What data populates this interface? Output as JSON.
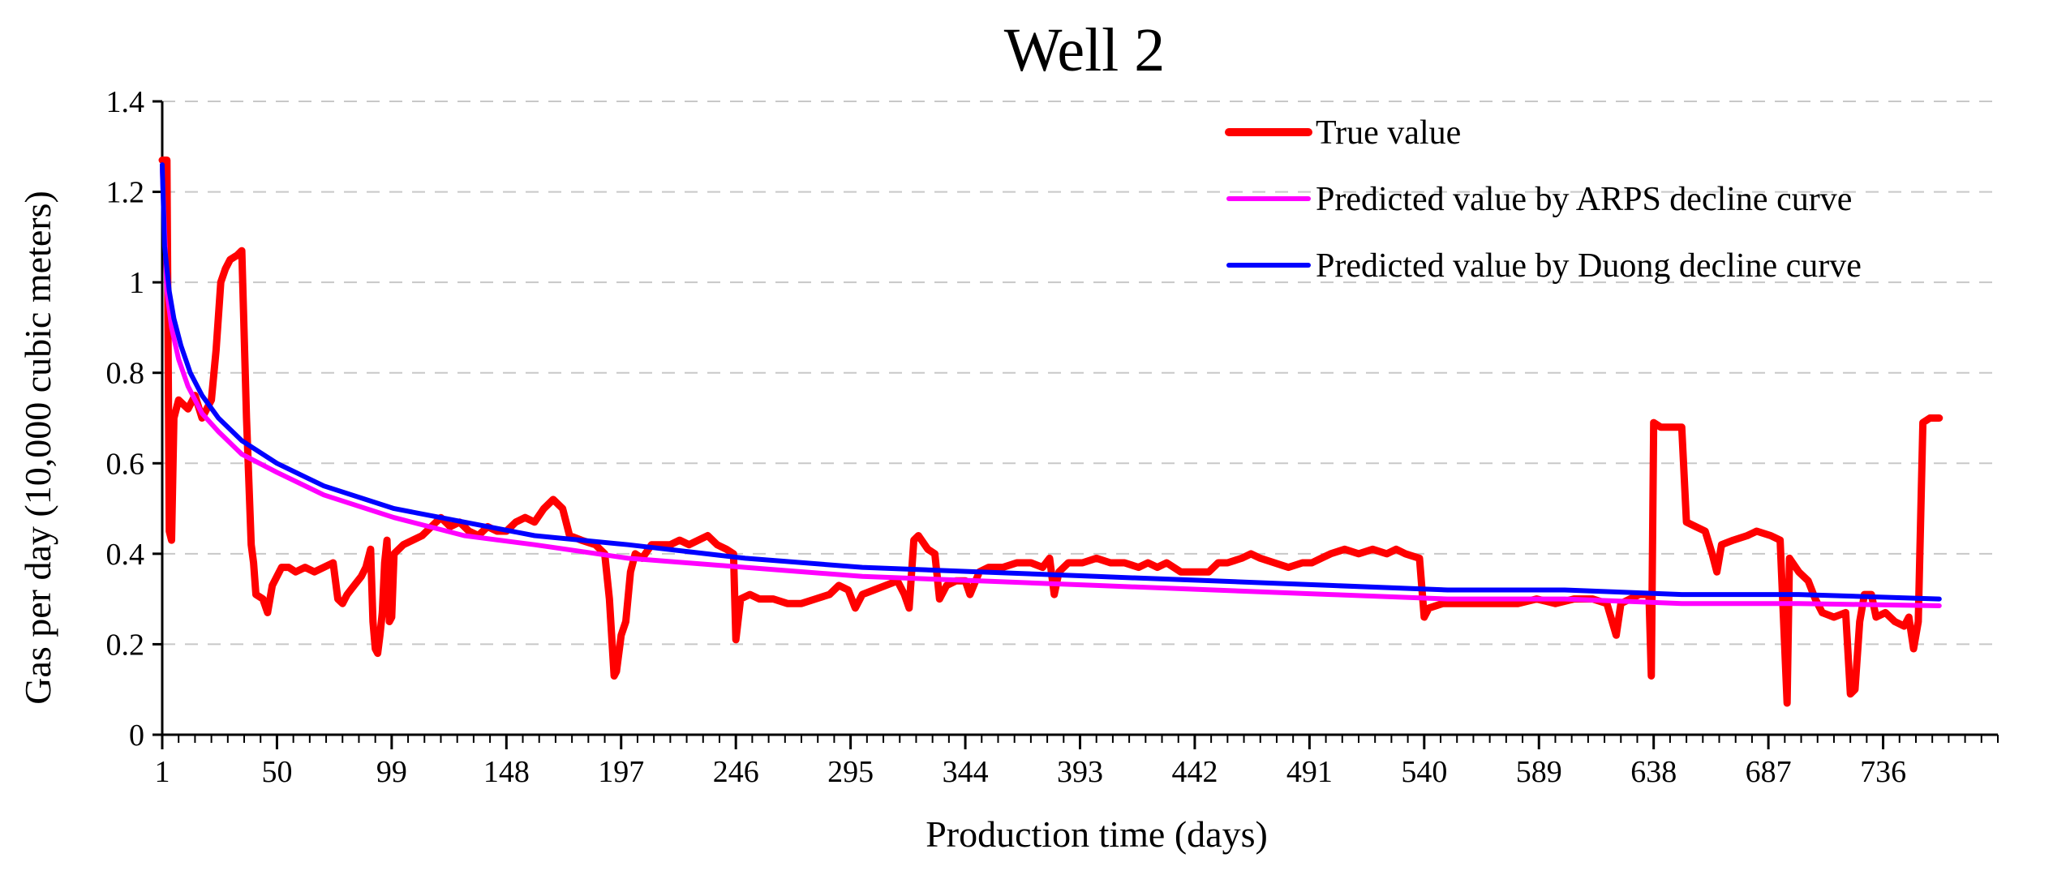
{
  "chart_data": {
    "type": "line",
    "title": "Well 2",
    "xlabel": "Production time (days)",
    "ylabel": "Gas per day (10,000 cubic meters)",
    "xlim": [
      1,
      785
    ],
    "ylim": [
      0,
      1.4
    ],
    "x_ticks": [
      1,
      50,
      99,
      148,
      197,
      246,
      295,
      344,
      393,
      442,
      491,
      540,
      589,
      638,
      687,
      736
    ],
    "y_ticks": [
      0,
      0.2,
      0.4,
      0.6,
      0.8,
      1,
      1.2,
      1.4
    ],
    "y_tick_labels": [
      "0",
      "0.2",
      "0.4",
      "0.6",
      "0.8",
      "1",
      "1.2",
      "1.4"
    ],
    "grid": "horizontal dashed",
    "legend_position": "top-right",
    "series": [
      {
        "name": "True value",
        "color": "#ff0000",
        "points": [
          [
            1,
            1.27
          ],
          [
            3,
            1.27
          ],
          [
            4,
            0.45
          ],
          [
            5,
            0.43
          ],
          [
            6,
            0.7
          ],
          [
            8,
            0.74
          ],
          [
            12,
            0.72
          ],
          [
            15,
            0.75
          ],
          [
            18,
            0.7
          ],
          [
            22,
            0.74
          ],
          [
            24,
            0.85
          ],
          [
            26,
            1.0
          ],
          [
            28,
            1.03
          ],
          [
            30,
            1.05
          ],
          [
            33,
            1.06
          ],
          [
            35,
            1.07
          ],
          [
            37,
            0.7
          ],
          [
            39,
            0.42
          ],
          [
            40,
            0.38
          ],
          [
            41,
            0.31
          ],
          [
            44,
            0.3
          ],
          [
            46,
            0.27
          ],
          [
            48,
            0.33
          ],
          [
            50,
            0.35
          ],
          [
            52,
            0.37
          ],
          [
            55,
            0.37
          ],
          [
            58,
            0.36
          ],
          [
            62,
            0.37
          ],
          [
            66,
            0.36
          ],
          [
            70,
            0.37
          ],
          [
            74,
            0.38
          ],
          [
            76,
            0.3
          ],
          [
            78,
            0.29
          ],
          [
            80,
            0.31
          ],
          [
            83,
            0.33
          ],
          [
            86,
            0.35
          ],
          [
            88,
            0.37
          ],
          [
            90,
            0.41
          ],
          [
            91,
            0.25
          ],
          [
            92,
            0.19
          ],
          [
            93,
            0.18
          ],
          [
            94,
            0.22
          ],
          [
            95,
            0.27
          ],
          [
            96,
            0.38
          ],
          [
            97,
            0.43
          ],
          [
            98,
            0.25
          ],
          [
            99,
            0.26
          ],
          [
            100,
            0.4
          ],
          [
            104,
            0.42
          ],
          [
            108,
            0.43
          ],
          [
            112,
            0.44
          ],
          [
            116,
            0.46
          ],
          [
            120,
            0.48
          ],
          [
            124,
            0.46
          ],
          [
            128,
            0.47
          ],
          [
            132,
            0.45
          ],
          [
            136,
            0.44
          ],
          [
            140,
            0.46
          ],
          [
            144,
            0.45
          ],
          [
            148,
            0.45
          ],
          [
            152,
            0.47
          ],
          [
            156,
            0.48
          ],
          [
            160,
            0.47
          ],
          [
            164,
            0.5
          ],
          [
            168,
            0.52
          ],
          [
            172,
            0.5
          ],
          [
            175,
            0.44
          ],
          [
            180,
            0.43
          ],
          [
            186,
            0.42
          ],
          [
            190,
            0.4
          ],
          [
            192,
            0.3
          ],
          [
            194,
            0.13
          ],
          [
            195,
            0.14
          ],
          [
            197,
            0.22
          ],
          [
            199,
            0.25
          ],
          [
            201,
            0.36
          ],
          [
            203,
            0.4
          ],
          [
            206,
            0.39
          ],
          [
            210,
            0.42
          ],
          [
            214,
            0.42
          ],
          [
            218,
            0.42
          ],
          [
            222,
            0.43
          ],
          [
            226,
            0.42
          ],
          [
            230,
            0.43
          ],
          [
            234,
            0.44
          ],
          [
            238,
            0.42
          ],
          [
            242,
            0.41
          ],
          [
            245,
            0.4
          ],
          [
            246,
            0.21
          ],
          [
            248,
            0.3
          ],
          [
            252,
            0.31
          ],
          [
            256,
            0.3
          ],
          [
            262,
            0.3
          ],
          [
            268,
            0.29
          ],
          [
            274,
            0.29
          ],
          [
            280,
            0.3
          ],
          [
            286,
            0.31
          ],
          [
            290,
            0.33
          ],
          [
            294,
            0.32
          ],
          [
            297,
            0.28
          ],
          [
            300,
            0.31
          ],
          [
            305,
            0.32
          ],
          [
            310,
            0.33
          ],
          [
            315,
            0.34
          ],
          [
            318,
            0.31
          ],
          [
            320,
            0.28
          ],
          [
            322,
            0.43
          ],
          [
            324,
            0.44
          ],
          [
            328,
            0.41
          ],
          [
            331,
            0.4
          ],
          [
            333,
            0.3
          ],
          [
            336,
            0.33
          ],
          [
            340,
            0.34
          ],
          [
            344,
            0.34
          ],
          [
            346,
            0.31
          ],
          [
            350,
            0.36
          ],
          [
            354,
            0.37
          ],
          [
            360,
            0.37
          ],
          [
            366,
            0.38
          ],
          [
            372,
            0.38
          ],
          [
            377,
            0.37
          ],
          [
            380,
            0.39
          ],
          [
            382,
            0.31
          ],
          [
            384,
            0.36
          ],
          [
            388,
            0.38
          ],
          [
            394,
            0.38
          ],
          [
            400,
            0.39
          ],
          [
            406,
            0.38
          ],
          [
            412,
            0.38
          ],
          [
            418,
            0.37
          ],
          [
            422,
            0.38
          ],
          [
            426,
            0.37
          ],
          [
            430,
            0.38
          ],
          [
            436,
            0.36
          ],
          [
            442,
            0.36
          ],
          [
            448,
            0.36
          ],
          [
            452,
            0.38
          ],
          [
            456,
            0.38
          ],
          [
            462,
            0.39
          ],
          [
            466,
            0.4
          ],
          [
            470,
            0.39
          ],
          [
            476,
            0.38
          ],
          [
            482,
            0.37
          ],
          [
            488,
            0.38
          ],
          [
            492,
            0.38
          ],
          [
            496,
            0.39
          ],
          [
            500,
            0.4
          ],
          [
            506,
            0.41
          ],
          [
            512,
            0.4
          ],
          [
            518,
            0.41
          ],
          [
            524,
            0.4
          ],
          [
            528,
            0.41
          ],
          [
            532,
            0.4
          ],
          [
            538,
            0.39
          ],
          [
            540,
            0.26
          ],
          [
            542,
            0.28
          ],
          [
            548,
            0.29
          ],
          [
            556,
            0.29
          ],
          [
            564,
            0.29
          ],
          [
            572,
            0.29
          ],
          [
            580,
            0.29
          ],
          [
            588,
            0.3
          ],
          [
            596,
            0.29
          ],
          [
            604,
            0.3
          ],
          [
            612,
            0.3
          ],
          [
            618,
            0.29
          ],
          [
            622,
            0.22
          ],
          [
            624,
            0.29
          ],
          [
            628,
            0.3
          ],
          [
            632,
            0.31
          ],
          [
            636,
            0.31
          ],
          [
            637,
            0.13
          ],
          [
            638,
            0.69
          ],
          [
            641,
            0.68
          ],
          [
            645,
            0.68
          ],
          [
            650,
            0.68
          ],
          [
            652,
            0.47
          ],
          [
            656,
            0.46
          ],
          [
            660,
            0.45
          ],
          [
            663,
            0.4
          ],
          [
            665,
            0.36
          ],
          [
            667,
            0.42
          ],
          [
            672,
            0.43
          ],
          [
            678,
            0.44
          ],
          [
            682,
            0.45
          ],
          [
            688,
            0.44
          ],
          [
            692,
            0.43
          ],
          [
            695,
            0.07
          ],
          [
            696,
            0.39
          ],
          [
            700,
            0.36
          ],
          [
            704,
            0.34
          ],
          [
            707,
            0.3
          ],
          [
            710,
            0.27
          ],
          [
            715,
            0.26
          ],
          [
            720,
            0.27
          ],
          [
            722,
            0.09
          ],
          [
            724,
            0.1
          ],
          [
            726,
            0.25
          ],
          [
            728,
            0.31
          ],
          [
            731,
            0.31
          ],
          [
            733,
            0.26
          ],
          [
            737,
            0.27
          ],
          [
            741,
            0.25
          ],
          [
            745,
            0.24
          ],
          [
            747,
            0.26
          ],
          [
            749,
            0.19
          ],
          [
            751,
            0.25
          ],
          [
            753,
            0.69
          ],
          [
            756,
            0.7
          ],
          [
            760,
            0.7
          ]
        ]
      },
      {
        "name": "Predicted value by ARPS decline curve",
        "color": "#ff00ff",
        "points": [
          [
            1,
            1.25
          ],
          [
            3,
            0.98
          ],
          [
            5,
            0.9
          ],
          [
            8,
            0.83
          ],
          [
            12,
            0.77
          ],
          [
            18,
            0.71
          ],
          [
            25,
            0.67
          ],
          [
            35,
            0.62
          ],
          [
            50,
            0.58
          ],
          [
            70,
            0.53
          ],
          [
            100,
            0.48
          ],
          [
            130,
            0.44
          ],
          [
            160,
            0.42
          ],
          [
            200,
            0.39
          ],
          [
            250,
            0.37
          ],
          [
            300,
            0.35
          ],
          [
            350,
            0.34
          ],
          [
            400,
            0.33
          ],
          [
            450,
            0.32
          ],
          [
            500,
            0.31
          ],
          [
            550,
            0.3
          ],
          [
            600,
            0.3
          ],
          [
            650,
            0.29
          ],
          [
            700,
            0.29
          ],
          [
            760,
            0.285
          ]
        ]
      },
      {
        "name": "Predicted value by Duong decline curve",
        "color": "#0000ff",
        "points": [
          [
            1,
            1.26
          ],
          [
            2,
            1.08
          ],
          [
            4,
            0.98
          ],
          [
            6,
            0.92
          ],
          [
            9,
            0.86
          ],
          [
            13,
            0.8
          ],
          [
            18,
            0.75
          ],
          [
            25,
            0.7
          ],
          [
            35,
            0.65
          ],
          [
            50,
            0.6
          ],
          [
            70,
            0.55
          ],
          [
            100,
            0.5
          ],
          [
            130,
            0.47
          ],
          [
            160,
            0.44
          ],
          [
            200,
            0.42
          ],
          [
            250,
            0.39
          ],
          [
            300,
            0.37
          ],
          [
            350,
            0.36
          ],
          [
            400,
            0.35
          ],
          [
            450,
            0.34
          ],
          [
            500,
            0.33
          ],
          [
            550,
            0.32
          ],
          [
            600,
            0.32
          ],
          [
            650,
            0.31
          ],
          [
            700,
            0.31
          ],
          [
            760,
            0.3
          ]
        ]
      }
    ]
  }
}
